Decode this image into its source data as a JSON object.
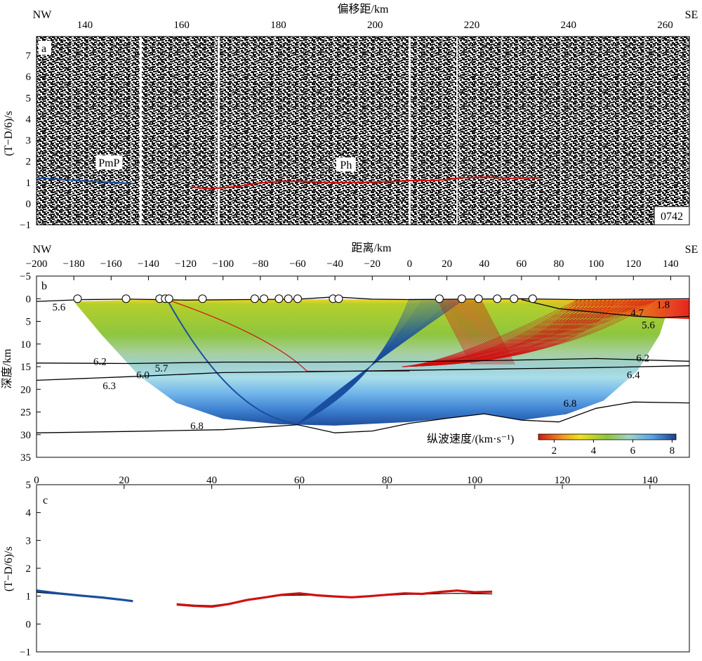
{
  "panel_a": {
    "letter": "a",
    "top_axis_label": "偏移距/km",
    "left_end": "NW",
    "right_end": "SE",
    "ylabel": "(T−D/6)/s",
    "station_id": "0742",
    "x_ticks": [
      140,
      160,
      180,
      200,
      220,
      240,
      260
    ],
    "xlim": [
      130,
      265
    ],
    "y_ticks": [
      7,
      6,
      5,
      4,
      3,
      2,
      1,
      0,
      -1
    ],
    "ylim": [
      -1,
      7.9
    ],
    "phase_labels": [
      {
        "text": "PmP",
        "x": 145,
        "y": 1.85
      },
      {
        "text": "Ph",
        "x": 194,
        "y": 1.75
      }
    ]
  },
  "panel_b": {
    "letter": "b",
    "top_axis_label": "距离/km",
    "left_end": "NW",
    "right_end": "SE",
    "ylabel": "深度/km",
    "colorbar_label": "纵波速度/(km·s⁻¹)",
    "colorbar_ticks": [
      2,
      4,
      6,
      8
    ],
    "colorbar_range": [
      1.2,
      8.2
    ],
    "x_ticks": [
      -200,
      -180,
      -160,
      -140,
      -120,
      -100,
      -80,
      -60,
      -40,
      -20,
      0,
      20,
      40,
      60,
      80,
      100,
      120,
      140
    ],
    "xlim": [
      -200,
      150
    ],
    "y_ticks": [
      -5,
      0,
      5,
      10,
      15,
      20,
      25,
      30,
      35
    ],
    "ylim": [
      -5,
      35
    ],
    "velocity_labels": [
      {
        "text": "5.6",
        "x": -188,
        "y": 1.8
      },
      {
        "text": "1.8",
        "x": 136,
        "y": 1.3
      },
      {
        "text": "4.7",
        "x": 122,
        "y": 3.1
      },
      {
        "text": "5.6",
        "x": 128,
        "y": 5.8
      },
      {
        "text": "6.2",
        "x": -166,
        "y": 13.8
      },
      {
        "text": "5.7",
        "x": -133,
        "y": 15.3
      },
      {
        "text": "6.0",
        "x": -143,
        "y": 16.8
      },
      {
        "text": "6.3",
        "x": -161,
        "y": 19.2
      },
      {
        "text": "6.2",
        "x": 125,
        "y": 13.1
      },
      {
        "text": "6.4",
        "x": 120,
        "y": 16.8
      },
      {
        "text": "6.8",
        "x": 86,
        "y": 23.1
      },
      {
        "text": "6.8",
        "x": -114,
        "y": 28.0
      }
    ],
    "station_positions_km": [
      -178,
      -152,
      -134,
      -131,
      -129,
      -111,
      -83,
      -78,
      -70,
      -65,
      -60,
      -41,
      -38,
      16,
      28,
      37,
      47,
      56,
      66
    ],
    "interfaces": [
      {
        "name": "topography",
        "points": [
          [
            -200,
            0.6
          ],
          [
            -175,
            0.2
          ],
          [
            -150,
            0.1
          ],
          [
            -120,
            0.3
          ],
          [
            -90,
            0.2
          ],
          [
            -60,
            0.1
          ],
          [
            -40,
            -0.4
          ],
          [
            -20,
            0.1
          ],
          [
            0,
            0.2
          ],
          [
            30,
            0.1
          ],
          [
            60,
            0.0
          ],
          [
            90,
            0.2
          ],
          [
            120,
            0.1
          ],
          [
            150,
            0.0
          ]
        ]
      },
      {
        "name": "sed-base-east",
        "points": [
          [
            60,
            0.2
          ],
          [
            80,
            2.2
          ],
          [
            100,
            3.0
          ],
          [
            120,
            3.8
          ],
          [
            135,
            4.2
          ],
          [
            150,
            3.9
          ]
        ]
      },
      {
        "name": "upper-crust-base",
        "points": [
          [
            -200,
            14.2
          ],
          [
            -150,
            14.3
          ],
          [
            -100,
            14.0
          ],
          [
            -50,
            14.0
          ],
          [
            0,
            13.9
          ],
          [
            50,
            13.6
          ],
          [
            100,
            13.2
          ],
          [
            150,
            13.8
          ]
        ]
      },
      {
        "name": "mid-crust",
        "points": [
          [
            -200,
            18.0
          ],
          [
            -150,
            17.2
          ],
          [
            -100,
            16.3
          ],
          [
            -50,
            16.1
          ],
          [
            0,
            15.8
          ],
          [
            50,
            15.5
          ],
          [
            100,
            15.2
          ],
          [
            150,
            14.8
          ]
        ]
      },
      {
        "name": "moho",
        "points": [
          [
            -200,
            29.6
          ],
          [
            -150,
            29.3
          ],
          [
            -100,
            28.9
          ],
          [
            -70,
            28.1
          ],
          [
            -60,
            27.8
          ],
          [
            -40,
            29.6
          ],
          [
            -20,
            29.2
          ],
          [
            0,
            27.5
          ],
          [
            20,
            26.4
          ],
          [
            40,
            25.4
          ],
          [
            60,
            26.8
          ],
          [
            80,
            27.2
          ],
          [
            100,
            24.2
          ],
          [
            120,
            22.8
          ],
          [
            150,
            23.0
          ]
        ]
      }
    ],
    "ray_groups": [
      {
        "phase": "PmP",
        "color": "#1a4fa0"
      },
      {
        "phase": "Pg",
        "color": "#d01010"
      }
    ]
  },
  "panel_c": {
    "letter": "c",
    "ylabel": "(T−D/6)/s",
    "x_ticks": [
      0,
      20,
      40,
      60,
      80,
      100,
      120,
      140
    ],
    "xlim": [
      0,
      149
    ],
    "y_ticks": [
      5,
      4,
      3,
      2,
      1,
      0,
      -1
    ],
    "ylim": [
      -1,
      5
    ]
  },
  "chart_data": [
    {
      "type": "line",
      "panel": "a",
      "xlabel": "偏移距/km",
      "ylabel": "(T−D/6)/s",
      "xlim": [
        130,
        265
      ],
      "ylim": [
        -1,
        7.9
      ],
      "series": [
        {
          "name": "PmP",
          "color": "#1a4fa0",
          "x": [
            130,
            140,
            150
          ],
          "y": [
            1.22,
            1.07,
            0.95
          ]
        },
        {
          "name": "Ph",
          "color": "#d01010",
          "x": [
            162,
            166,
            171,
            176,
            181,
            186,
            190,
            196,
            201,
            207,
            213,
            218,
            223,
            228,
            234
          ],
          "y": [
            0.78,
            0.7,
            0.8,
            0.97,
            1.07,
            1.04,
            1.0,
            1.0,
            1.02,
            1.09,
            1.1,
            1.22,
            1.25,
            1.2,
            1.22
          ]
        }
      ]
    },
    {
      "type": "line",
      "panel": "c",
      "ylabel": "(T−D/6)/s",
      "xlim": [
        0,
        149
      ],
      "ylim": [
        -1,
        5
      ],
      "series": [
        {
          "name": "PmP observed",
          "color": "#1a4fa0",
          "x": [
            0,
            5,
            10,
            15,
            20,
            22
          ],
          "y": [
            1.2,
            1.1,
            1.02,
            0.95,
            0.86,
            0.82
          ]
        },
        {
          "name": "Ph observed",
          "color": "#d01010",
          "x": [
            32,
            36,
            40,
            44,
            48,
            52,
            56,
            60,
            64,
            68,
            72,
            76,
            80,
            84,
            88,
            92,
            96,
            100,
            104
          ],
          "y": [
            0.7,
            0.65,
            0.62,
            0.72,
            0.86,
            0.95,
            1.05,
            1.1,
            1.03,
            0.99,
            0.96,
            1.0,
            1.05,
            1.1,
            1.08,
            1.15,
            1.2,
            1.14,
            1.16
          ]
        },
        {
          "name": "calculated",
          "color": "#000000",
          "x": [
            0,
            22,
            32,
            36,
            40,
            44,
            48,
            52,
            56,
            60,
            64,
            68,
            72,
            76,
            80,
            84,
            88,
            92,
            96,
            100,
            104
          ],
          "y": [
            1.14,
            0.84,
            0.73,
            0.68,
            0.66,
            0.74,
            0.88,
            0.97,
            1.02,
            1.04,
            1.03,
            0.99,
            0.97,
            0.99,
            1.03,
            1.06,
            1.07,
            1.09,
            1.1,
            1.09,
            1.08
          ]
        }
      ]
    }
  ]
}
